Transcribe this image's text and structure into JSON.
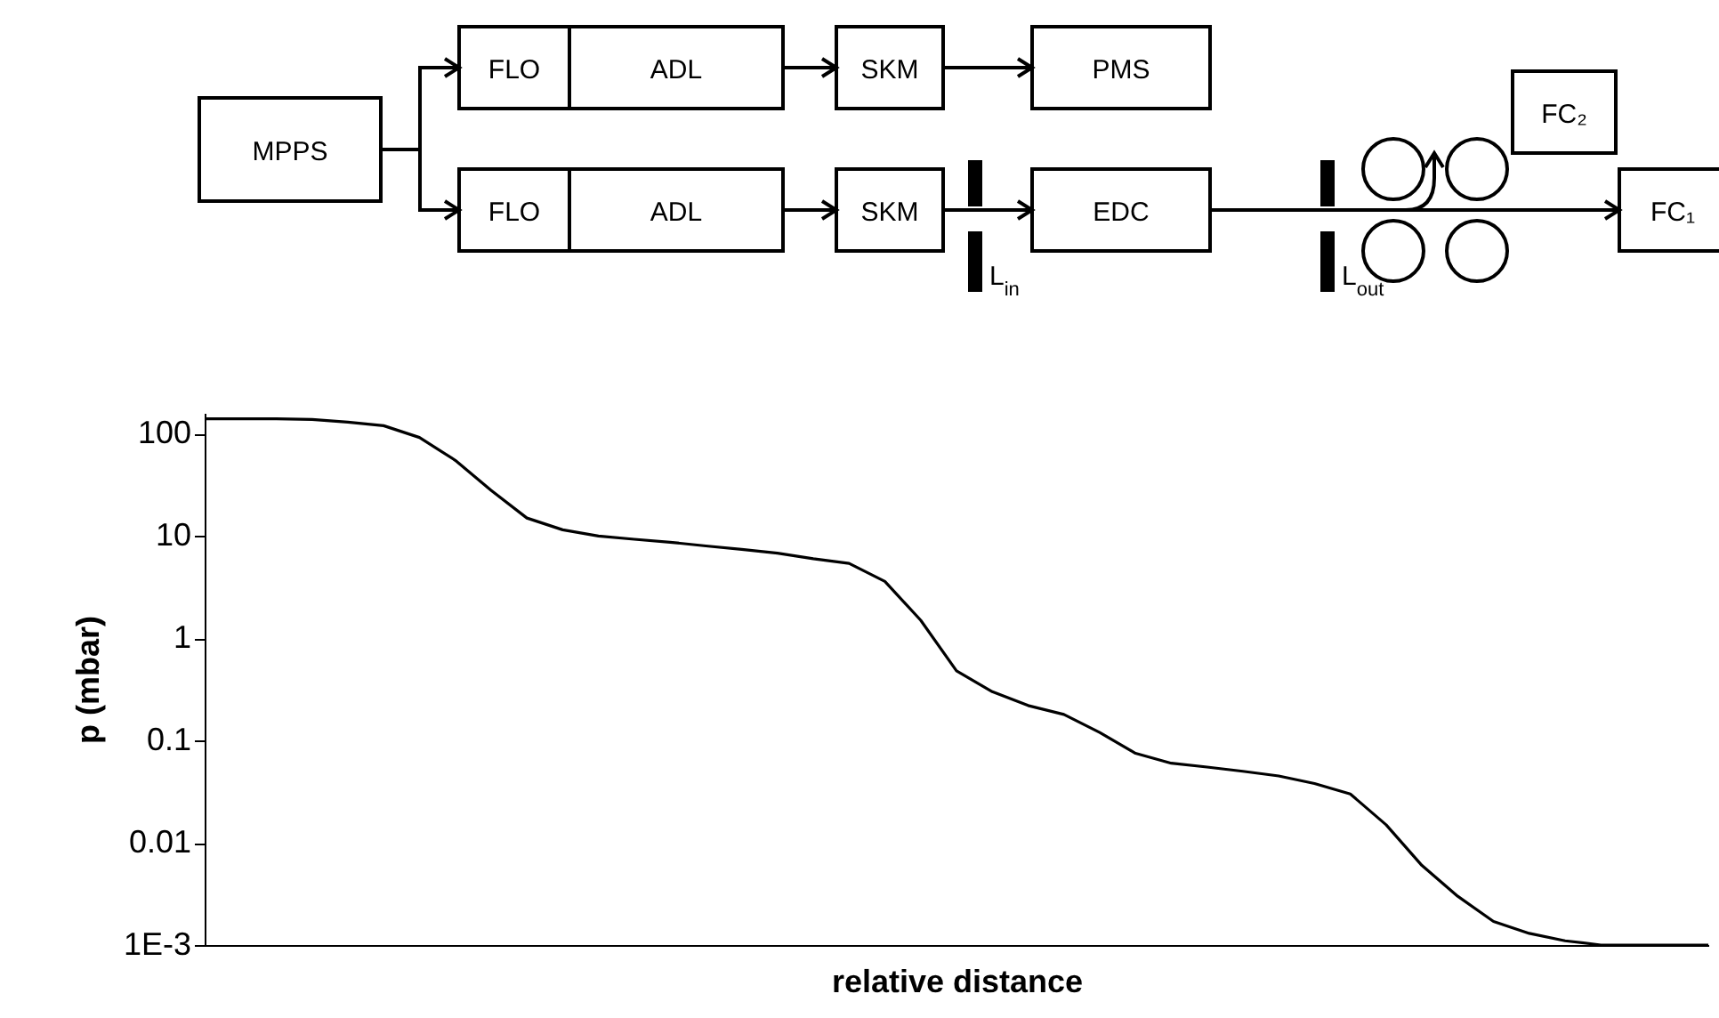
{
  "chart_data": {
    "type": "line",
    "xlabel": "relative distance",
    "ylabel": "p (mbar)",
    "log": "y",
    "grid": false,
    "marker": "none",
    "line_style": "solid",
    "annotations": [
      "MPPS",
      "FLO",
      "ADL",
      "SKM",
      "PMS",
      "FLO",
      "ADL",
      "SKM",
      "EDC",
      "FC₂",
      "FC₁",
      "L$_{in}$",
      "L$_{out}$"
    ],
    "categories": [
      null,
      null,
      null,
      null,
      null,
      null,
      null,
      null,
      null,
      null,
      null,
      null,
      null,
      null,
      null,
      null,
      null,
      null,
      null,
      null,
      null,
      null,
      null,
      null,
      null,
      null,
      null,
      null,
      null,
      null,
      null,
      null,
      null,
      null,
      null,
      null,
      null,
      null,
      null,
      null,
      null,
      null,
      null
    ],
    "ylim": [
      0.001,
      160
    ],
    "yticks": [
      {
        "value": 0.001,
        "label": "1E-3"
      },
      0.01,
      0.1,
      1,
      10,
      100
    ],
    "series": [
      {
        "color": "#000000",
        "values": [
          140,
          140,
          140,
          138,
          130,
          120,
          92,
          55,
          28,
          15,
          11.5,
          10,
          9.3,
          8.7,
          8,
          7.4,
          6.8,
          6,
          5.4,
          3.6,
          1.5,
          0.48,
          0.3,
          0.22,
          0.18,
          0.12,
          0.075,
          0.06,
          0.055,
          0.05,
          0.045,
          0.038,
          0.03,
          0.015,
          0.006,
          0.003,
          0.0017,
          0.0013,
          0.0011,
          0.001,
          0.001,
          0.001,
          0.001
        ]
      }
    ]
  }
}
